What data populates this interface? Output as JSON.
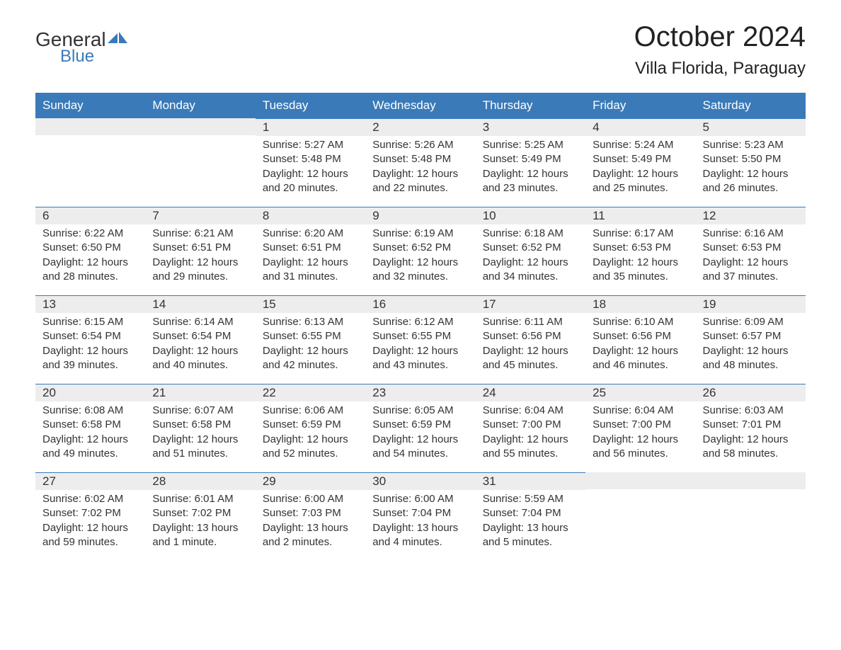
{
  "logo": {
    "text_general": "General",
    "text_blue": "Blue",
    "icon_color": "#3a7ab8"
  },
  "title": "October 2024",
  "location": "Villa Florida, Paraguay",
  "colors": {
    "header_bg": "#3a7ab8",
    "header_text": "#ffffff",
    "daynum_bg": "#ededed",
    "border": "#3a7ab8",
    "body_text": "#333333",
    "page_bg": "#ffffff"
  },
  "daynames": [
    "Sunday",
    "Monday",
    "Tuesday",
    "Wednesday",
    "Thursday",
    "Friday",
    "Saturday"
  ],
  "weeks": [
    [
      {
        "daynum": "",
        "sunrise": "",
        "sunset": "",
        "daylight": ""
      },
      {
        "daynum": "",
        "sunrise": "",
        "sunset": "",
        "daylight": ""
      },
      {
        "daynum": "1",
        "sunrise": "Sunrise: 5:27 AM",
        "sunset": "Sunset: 5:48 PM",
        "daylight": "Daylight: 12 hours and 20 minutes."
      },
      {
        "daynum": "2",
        "sunrise": "Sunrise: 5:26 AM",
        "sunset": "Sunset: 5:48 PM",
        "daylight": "Daylight: 12 hours and 22 minutes."
      },
      {
        "daynum": "3",
        "sunrise": "Sunrise: 5:25 AM",
        "sunset": "Sunset: 5:49 PM",
        "daylight": "Daylight: 12 hours and 23 minutes."
      },
      {
        "daynum": "4",
        "sunrise": "Sunrise: 5:24 AM",
        "sunset": "Sunset: 5:49 PM",
        "daylight": "Daylight: 12 hours and 25 minutes."
      },
      {
        "daynum": "5",
        "sunrise": "Sunrise: 5:23 AM",
        "sunset": "Sunset: 5:50 PM",
        "daylight": "Daylight: 12 hours and 26 minutes."
      }
    ],
    [
      {
        "daynum": "6",
        "sunrise": "Sunrise: 6:22 AM",
        "sunset": "Sunset: 6:50 PM",
        "daylight": "Daylight: 12 hours and 28 minutes."
      },
      {
        "daynum": "7",
        "sunrise": "Sunrise: 6:21 AM",
        "sunset": "Sunset: 6:51 PM",
        "daylight": "Daylight: 12 hours and 29 minutes."
      },
      {
        "daynum": "8",
        "sunrise": "Sunrise: 6:20 AM",
        "sunset": "Sunset: 6:51 PM",
        "daylight": "Daylight: 12 hours and 31 minutes."
      },
      {
        "daynum": "9",
        "sunrise": "Sunrise: 6:19 AM",
        "sunset": "Sunset: 6:52 PM",
        "daylight": "Daylight: 12 hours and 32 minutes."
      },
      {
        "daynum": "10",
        "sunrise": "Sunrise: 6:18 AM",
        "sunset": "Sunset: 6:52 PM",
        "daylight": "Daylight: 12 hours and 34 minutes."
      },
      {
        "daynum": "11",
        "sunrise": "Sunrise: 6:17 AM",
        "sunset": "Sunset: 6:53 PM",
        "daylight": "Daylight: 12 hours and 35 minutes."
      },
      {
        "daynum": "12",
        "sunrise": "Sunrise: 6:16 AM",
        "sunset": "Sunset: 6:53 PM",
        "daylight": "Daylight: 12 hours and 37 minutes."
      }
    ],
    [
      {
        "daynum": "13",
        "sunrise": "Sunrise: 6:15 AM",
        "sunset": "Sunset: 6:54 PM",
        "daylight": "Daylight: 12 hours and 39 minutes."
      },
      {
        "daynum": "14",
        "sunrise": "Sunrise: 6:14 AM",
        "sunset": "Sunset: 6:54 PM",
        "daylight": "Daylight: 12 hours and 40 minutes."
      },
      {
        "daynum": "15",
        "sunrise": "Sunrise: 6:13 AM",
        "sunset": "Sunset: 6:55 PM",
        "daylight": "Daylight: 12 hours and 42 minutes."
      },
      {
        "daynum": "16",
        "sunrise": "Sunrise: 6:12 AM",
        "sunset": "Sunset: 6:55 PM",
        "daylight": "Daylight: 12 hours and 43 minutes."
      },
      {
        "daynum": "17",
        "sunrise": "Sunrise: 6:11 AM",
        "sunset": "Sunset: 6:56 PM",
        "daylight": "Daylight: 12 hours and 45 minutes."
      },
      {
        "daynum": "18",
        "sunrise": "Sunrise: 6:10 AM",
        "sunset": "Sunset: 6:56 PM",
        "daylight": "Daylight: 12 hours and 46 minutes."
      },
      {
        "daynum": "19",
        "sunrise": "Sunrise: 6:09 AM",
        "sunset": "Sunset: 6:57 PM",
        "daylight": "Daylight: 12 hours and 48 minutes."
      }
    ],
    [
      {
        "daynum": "20",
        "sunrise": "Sunrise: 6:08 AM",
        "sunset": "Sunset: 6:58 PM",
        "daylight": "Daylight: 12 hours and 49 minutes."
      },
      {
        "daynum": "21",
        "sunrise": "Sunrise: 6:07 AM",
        "sunset": "Sunset: 6:58 PM",
        "daylight": "Daylight: 12 hours and 51 minutes."
      },
      {
        "daynum": "22",
        "sunrise": "Sunrise: 6:06 AM",
        "sunset": "Sunset: 6:59 PM",
        "daylight": "Daylight: 12 hours and 52 minutes."
      },
      {
        "daynum": "23",
        "sunrise": "Sunrise: 6:05 AM",
        "sunset": "Sunset: 6:59 PM",
        "daylight": "Daylight: 12 hours and 54 minutes."
      },
      {
        "daynum": "24",
        "sunrise": "Sunrise: 6:04 AM",
        "sunset": "Sunset: 7:00 PM",
        "daylight": "Daylight: 12 hours and 55 minutes."
      },
      {
        "daynum": "25",
        "sunrise": "Sunrise: 6:04 AM",
        "sunset": "Sunset: 7:00 PM",
        "daylight": "Daylight: 12 hours and 56 minutes."
      },
      {
        "daynum": "26",
        "sunrise": "Sunrise: 6:03 AM",
        "sunset": "Sunset: 7:01 PM",
        "daylight": "Daylight: 12 hours and 58 minutes."
      }
    ],
    [
      {
        "daynum": "27",
        "sunrise": "Sunrise: 6:02 AM",
        "sunset": "Sunset: 7:02 PM",
        "daylight": "Daylight: 12 hours and 59 minutes."
      },
      {
        "daynum": "28",
        "sunrise": "Sunrise: 6:01 AM",
        "sunset": "Sunset: 7:02 PM",
        "daylight": "Daylight: 13 hours and 1 minute."
      },
      {
        "daynum": "29",
        "sunrise": "Sunrise: 6:00 AM",
        "sunset": "Sunset: 7:03 PM",
        "daylight": "Daylight: 13 hours and 2 minutes."
      },
      {
        "daynum": "30",
        "sunrise": "Sunrise: 6:00 AM",
        "sunset": "Sunset: 7:04 PM",
        "daylight": "Daylight: 13 hours and 4 minutes."
      },
      {
        "daynum": "31",
        "sunrise": "Sunrise: 5:59 AM",
        "sunset": "Sunset: 7:04 PM",
        "daylight": "Daylight: 13 hours and 5 minutes."
      },
      {
        "daynum": "",
        "sunrise": "",
        "sunset": "",
        "daylight": ""
      },
      {
        "daynum": "",
        "sunrise": "",
        "sunset": "",
        "daylight": ""
      }
    ]
  ]
}
